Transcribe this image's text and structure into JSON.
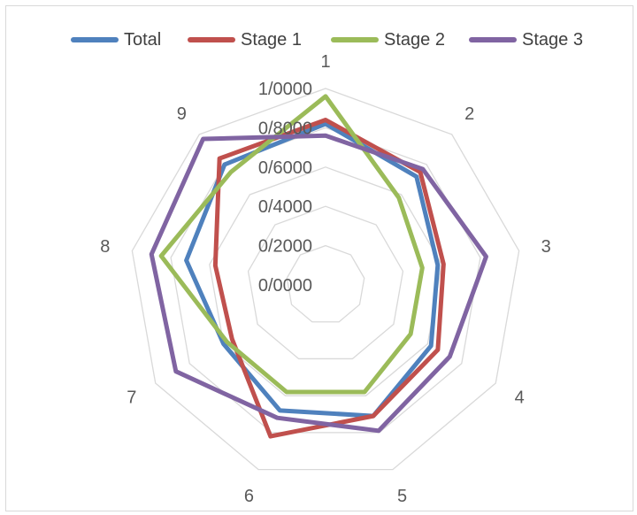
{
  "chart_data": {
    "type": "radar",
    "categories": [
      "1",
      "2",
      "3",
      "4",
      "5",
      "6",
      "7",
      "8",
      "9"
    ],
    "tick_labels": [
      "0/0000",
      "0/2000",
      "0/4000",
      "0/6000",
      "0/8000",
      "1/0000"
    ],
    "ylim": [
      0,
      1
    ],
    "grid": true,
    "legend_position": "top",
    "series": [
      {
        "name": "Total",
        "color": "#4F81BD",
        "values": [
          0.82,
          0.72,
          0.58,
          0.62,
          0.71,
          0.68,
          0.6,
          0.72,
          0.8
        ]
      },
      {
        "name": "Stage 1",
        "color": "#C0504D",
        "values": [
          0.84,
          0.75,
          0.61,
          0.66,
          0.71,
          0.82,
          0.55,
          0.57,
          0.84
        ]
      },
      {
        "name": "Stage 2",
        "color": "#9BBB59",
        "values": [
          0.96,
          0.58,
          0.5,
          0.5,
          0.58,
          0.58,
          0.58,
          0.85,
          0.75
        ]
      },
      {
        "name": "Stage 3",
        "color": "#8064A2",
        "values": [
          0.76,
          0.77,
          0.83,
          0.73,
          0.79,
          0.72,
          0.88,
          0.9,
          0.97
        ]
      }
    ]
  }
}
